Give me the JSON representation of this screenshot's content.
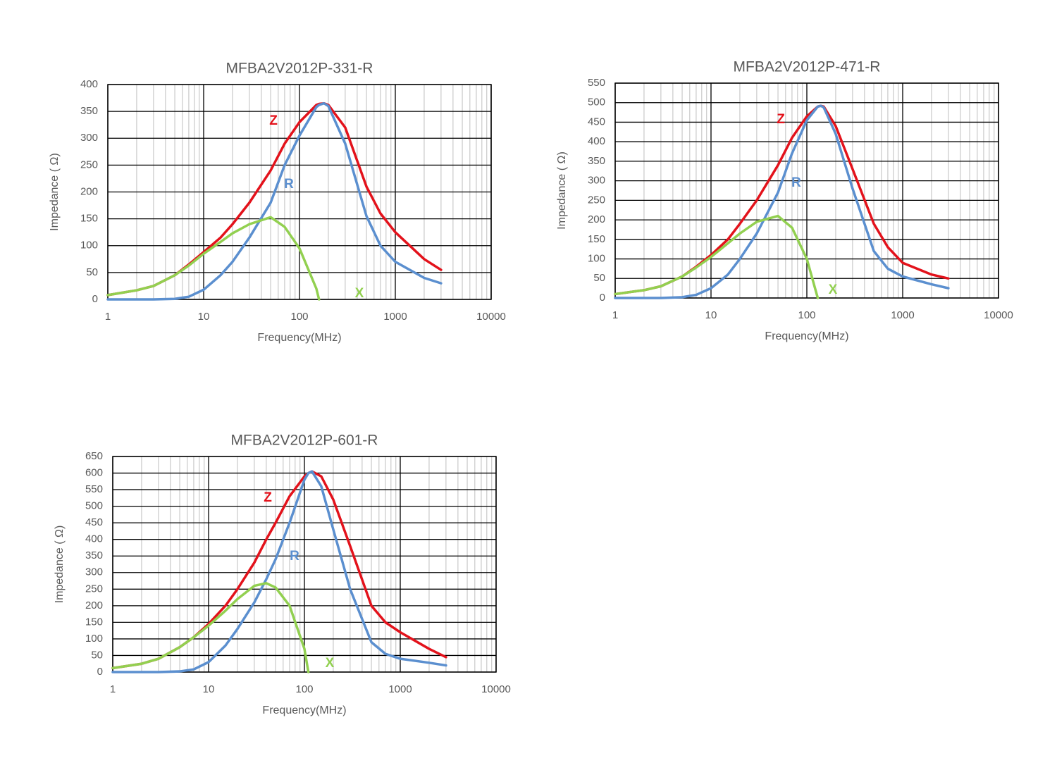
{
  "chart_data": [
    {
      "type": "line",
      "title": "MFBA2V2012P-331-R",
      "xlabel": "Frequency(MHz)",
      "ylabel": "Impedance ( Ω)",
      "xscale": "log",
      "grid": true,
      "x": [
        1,
        2,
        3,
        5,
        7,
        10,
        15,
        20,
        30,
        50,
        70,
        100,
        150,
        160,
        180,
        200,
        300,
        500,
        700,
        1000,
        2000,
        3000
      ],
      "series": [
        {
          "name": "Z",
          "color": "#e3121b",
          "values": [
            8,
            17,
            25,
            45,
            65,
            88,
            115,
            140,
            180,
            240,
            290,
            330,
            362,
            364,
            365,
            362,
            320,
            210,
            160,
            125,
            75,
            55
          ]
        },
        {
          "name": "R",
          "color": "#5b8fcf",
          "values": [
            0,
            0,
            0,
            1,
            5,
            18,
            45,
            70,
            115,
            180,
            250,
            305,
            358,
            362,
            365,
            360,
            290,
            155,
            100,
            70,
            40,
            30
          ]
        },
        {
          "name": "X",
          "color": "#92d050",
          "values": [
            8,
            17,
            25,
            45,
            63,
            85,
            107,
            123,
            140,
            153,
            135,
            95,
            20,
            0,
            null,
            null,
            null,
            null,
            null,
            null,
            null,
            null
          ]
        }
      ],
      "xlim": [
        1,
        10000
      ],
      "xticks": [
        1,
        10,
        100,
        1000,
        10000
      ],
      "ylim": [
        0,
        400
      ],
      "yticks": [
        0,
        50,
        100,
        150,
        200,
        250,
        300,
        350,
        400
      ]
    },
    {
      "type": "line",
      "title": "MFBA2V2012P-471-R",
      "xlabel": "Frequency(MHz)",
      "ylabel": "Impedance ( Ω)",
      "xscale": "log",
      "grid": true,
      "x": [
        1,
        2,
        3,
        5,
        7,
        10,
        15,
        20,
        30,
        50,
        70,
        100,
        130,
        140,
        150,
        200,
        300,
        500,
        700,
        1000,
        2000,
        3000
      ],
      "series": [
        {
          "name": "Z",
          "color": "#e3121b",
          "values": [
            10,
            20,
            30,
            55,
            80,
            110,
            150,
            190,
            250,
            340,
            410,
            465,
            490,
            492,
            490,
            440,
            330,
            190,
            130,
            90,
            60,
            50
          ]
        },
        {
          "name": "R",
          "color": "#5b8fcf",
          "values": [
            0,
            0,
            0,
            2,
            8,
            25,
            60,
            100,
            165,
            270,
            370,
            455,
            490,
            492,
            488,
            420,
            280,
            120,
            75,
            55,
            35,
            25
          ]
        },
        {
          "name": "X",
          "color": "#92d050",
          "values": [
            10,
            20,
            30,
            55,
            78,
            105,
            140,
            165,
            195,
            210,
            180,
            100,
            0,
            null,
            null,
            null,
            null,
            null,
            null,
            null,
            null,
            null
          ]
        }
      ],
      "xlim": [
        1,
        10000
      ],
      "xticks": [
        1,
        10,
        100,
        1000,
        10000
      ],
      "ylim": [
        0,
        550
      ],
      "yticks": [
        0,
        50,
        100,
        150,
        200,
        250,
        300,
        350,
        400,
        450,
        500,
        550
      ]
    },
    {
      "type": "line",
      "title": "MFBA2V2012P-601-R",
      "xlabel": "Frequency(MHz)",
      "ylabel": "Impedance ( Ω)",
      "xscale": "log",
      "grid": true,
      "x": [
        1,
        2,
        3,
        5,
        7,
        10,
        15,
        20,
        30,
        40,
        50,
        70,
        100,
        110,
        120,
        150,
        200,
        300,
        500,
        700,
        1000,
        2000,
        3000
      ],
      "series": [
        {
          "name": "Z",
          "color": "#e3121b",
          "values": [
            12,
            25,
            40,
            75,
            105,
            145,
            200,
            250,
            330,
            400,
            450,
            530,
            590,
            600,
            605,
            590,
            520,
            380,
            200,
            150,
            120,
            70,
            45
          ]
        },
        {
          "name": "R",
          "color": "#5b8fcf",
          "values": [
            0,
            0,
            0,
            2,
            8,
            30,
            80,
            130,
            210,
            280,
            340,
            450,
            580,
            600,
            605,
            560,
            430,
            250,
            90,
            55,
            40,
            28,
            20
          ]
        },
        {
          "name": "X",
          "color": "#92d050",
          "values": [
            12,
            25,
            40,
            75,
            105,
            140,
            185,
            220,
            260,
            268,
            255,
            200,
            70,
            0,
            null,
            null,
            null,
            null,
            null,
            null,
            null,
            null,
            null
          ]
        }
      ],
      "xlim": [
        1,
        10000
      ],
      "xticks": [
        1,
        10,
        100,
        1000,
        10000
      ],
      "ylim": [
        0,
        650
      ],
      "yticks": [
        0,
        50,
        100,
        150,
        200,
        250,
        300,
        350,
        400,
        450,
        500,
        550,
        600,
        650
      ]
    }
  ]
}
